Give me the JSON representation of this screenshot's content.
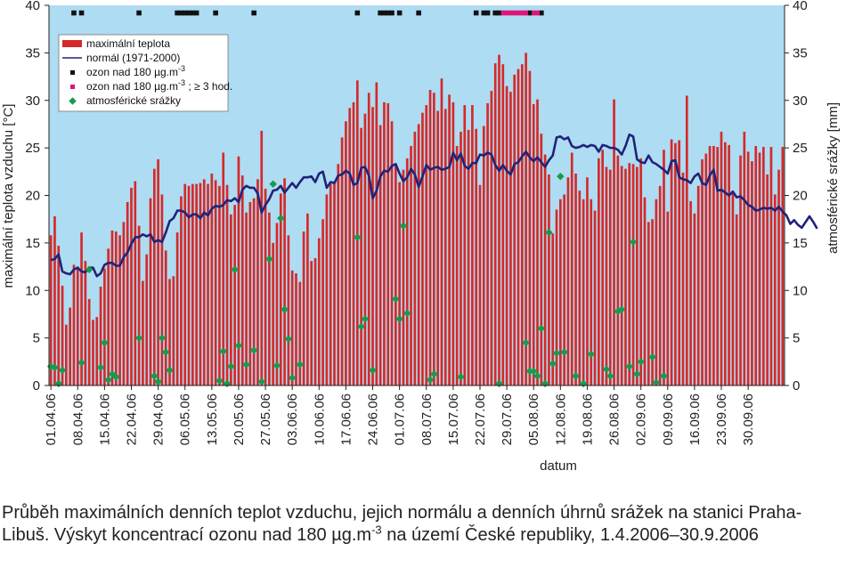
{
  "chart_data": {
    "type": "bar",
    "xlabel": "datum",
    "ylabel_left": "maximální teplota vzduchu [°C]",
    "ylabel_right": "atmosférické srážky [mm]",
    "ylim": [
      0,
      40
    ],
    "y2lim": [
      0,
      40
    ],
    "yticks": [
      0,
      5,
      10,
      15,
      20,
      25,
      30,
      35,
      40
    ],
    "grid": false,
    "legend_position": "top-left",
    "colors": {
      "plot_background": "#aedcf2",
      "bars": "#d42a2a",
      "normal_line": "#1f237a",
      "ozone": "#111111",
      "ozone_3h": "#e0157a",
      "precip": "#1a9a4a"
    },
    "x_tick_labels": [
      "01.04.06",
      "08.04.06",
      "15.04.06",
      "22.04.06",
      "29.04.06",
      "06.05.06",
      "13.05.06",
      "20.05.06",
      "27.05.06",
      "03.06.06",
      "10.06.06",
      "17.06.06",
      "24.06.06",
      "01.07.06",
      "08.07.06",
      "15.07.06",
      "22.07.06",
      "29.07.06",
      "05.08.06",
      "12.08.06",
      "19.08.06",
      "26.08.06",
      "02.09.06",
      "09.09.06",
      "16.09.06",
      "23.09.06",
      "30.09.06"
    ],
    "legend": [
      {
        "key": "max",
        "label": "maximální teplota",
        "symbol": "bar"
      },
      {
        "key": "normal",
        "label": "normál (1971-2000)",
        "symbol": "line"
      },
      {
        "key": "ozone",
        "label": "ozon nad 180 µg.m",
        "sup": "-3",
        "suffix": "",
        "symbol": "square-black"
      },
      {
        "key": "ozone3",
        "label": "ozon nad 180 µg.m",
        "sup": "-3",
        "suffix": " ; ≥ 3 hod.",
        "symbol": "square-pink"
      },
      {
        "key": "precip",
        "label": "atmosférické srážky",
        "symbol": "diamond"
      }
    ],
    "series": [
      {
        "name": "maximální teplota",
        "type": "bar",
        "axis": "left",
        "values": [
          15.8,
          17.8,
          14.7,
          10.5,
          6.4,
          8.2,
          12.7,
          12.5,
          16.1,
          13.1,
          9.1,
          6.9,
          7.2,
          10.4,
          12.3,
          14.4,
          16.3,
          16.2,
          15.8,
          17.2,
          19.3,
          20.8,
          21.5,
          16.8,
          11.0,
          13.8,
          19.7,
          22.8,
          23.8,
          20.1,
          14.2,
          11.2,
          11.5,
          16.1,
          19.9,
          21.2,
          21.0,
          21.2,
          21.2,
          21.3,
          21.7,
          21.2,
          22.3,
          21.6,
          21.0,
          24.5,
          21.1,
          18.0,
          19.0,
          24.1,
          22.1,
          18.2,
          19.3,
          19.7,
          21.7,
          26.8,
          20.7,
          18.2,
          15.0,
          17.1,
          20.2,
          21.8,
          15.8,
          12.1,
          11.8,
          10.9,
          16.2,
          18.1,
          13.1,
          13.4,
          15.5,
          17.5,
          20.1,
          21.2,
          21.5,
          23.3,
          26.1,
          27.8,
          29.2,
          29.8,
          32.1,
          27.1,
          28.6,
          30.8,
          29.3,
          31.9,
          27.4,
          29.8,
          29.7,
          27.8,
          23.1,
          21.4,
          22.7,
          23.9,
          25.2,
          26.7,
          27.5,
          28.7,
          29.5,
          31.1,
          30.8,
          28.9,
          32.3,
          29.1,
          30.6,
          29.8,
          25.2,
          26.7,
          29.5,
          26.9,
          29.5,
          27.0,
          21.1,
          27.3,
          29.7,
          31.0,
          33.9,
          34.8,
          33.8,
          31.5,
          30.9,
          32.7,
          33.3,
          33.8,
          35.0,
          33.1,
          29.6,
          30.1,
          26.5,
          24.3,
          22.2,
          16.0,
          18.5,
          19.6,
          20.1,
          21.9,
          24.5,
          22.3,
          20.5,
          19.6,
          21.9,
          19.6,
          18.4,
          23.9,
          24.8,
          23.0,
          22.7,
          30.1,
          24.2,
          23.1,
          22.8,
          23.4,
          23.3,
          23.0,
          23.9,
          19.8,
          17.2,
          17.5,
          19.6,
          21.0,
          24.8,
          18.3,
          25.9,
          25.5,
          25.8,
          22.4,
          30.5,
          19.4,
          18.1,
          21.0,
          23.8,
          24.4,
          25.2,
          25.2,
          25.1,
          26.7,
          25.6,
          25.3,
          20.3,
          18.0,
          24.2,
          26.7,
          24.6,
          23.6,
          25.2,
          24.5,
          25.1,
          22.2,
          25.1,
          20.1,
          22.7,
          25.1
        ]
      },
      {
        "name": "normál (1971-2000)",
        "type": "line",
        "axis": "left",
        "values": [
          13.2,
          13.3,
          13.8,
          12.0,
          11.8,
          11.7,
          12.2,
          12.4,
          12.0,
          11.9,
          12.4,
          12.4,
          11.5,
          11.8,
          12.7,
          12.9,
          12.9,
          12.6,
          12.6,
          13.5,
          14.0,
          14.9,
          15.6,
          15.6,
          15.9,
          15.7,
          15.9,
          15.1,
          15.3,
          15.1,
          16.1,
          17.3,
          17.6,
          18.4,
          18.4,
          18.2,
          17.7,
          18.0,
          18.0,
          17.6,
          18.2,
          17.9,
          18.6,
          18.9,
          18.8,
          19.0,
          19.5,
          19.4,
          19.7,
          19.3,
          20.6,
          21.0,
          20.8,
          20.8,
          20.2,
          18.2,
          19.0,
          19.6,
          20.5,
          20.6,
          21.0,
          20.3,
          20.8,
          21.3,
          20.8,
          21.4,
          21.9,
          21.9,
          22.0,
          21.4,
          22.3,
          22.5,
          20.8,
          21.4,
          21.3,
          22.1,
          22.2,
          22.6,
          22.3,
          21.1,
          21.3,
          22.9,
          23.0,
          22.1,
          19.7,
          20.5,
          22.0,
          22.6,
          22.5,
          23.1,
          23.3,
          22.3,
          21.5,
          21.9,
          22.8,
          22.2,
          20.9,
          22.0,
          23.2,
          22.7,
          22.9,
          23.0,
          22.7,
          22.8,
          23.0,
          24.5,
          23.7,
          24.4,
          23.1,
          22.8,
          23.4,
          23.4,
          24.3,
          24.2,
          24.5,
          24.3,
          23.2,
          22.6,
          23.2,
          22.6,
          22.2,
          23.3,
          23.5,
          24.1,
          24.6,
          24.0,
          23.6,
          24.0,
          23.5,
          23.0,
          23.7,
          24.2,
          26.1,
          26.2,
          25.9,
          26.1,
          25.2,
          25.0,
          25.1,
          25.3,
          25.1,
          25.3,
          25.2,
          24.6,
          25.3,
          25.2,
          25.0,
          25.0,
          24.8,
          24.3,
          25.2,
          26.4,
          26.2,
          23.8,
          23.5,
          23.4,
          24.2,
          23.5,
          23.3,
          23.0,
          22.7,
          22.3,
          23.6,
          23.7,
          21.9,
          21.7,
          21.6,
          21.3,
          22.0,
          22.3,
          21.3,
          21.1,
          22.1,
          22.7,
          20.5,
          20.6,
          20.3,
          20.0,
          20.4,
          19.8,
          19.9,
          19.5,
          19.0,
          18.8,
          18.4,
          18.5,
          18.7,
          18.6,
          18.7,
          18.4,
          18.8,
          18.3,
          17.9,
          17.0,
          17.4,
          16.9,
          16.6,
          17.2,
          17.8,
          17.2,
          16.5
        ]
      },
      {
        "name": "ozon nad 180 µg.m-3",
        "type": "marker",
        "axis": "left",
        "y": 39.2,
        "day_indexes": [
          6,
          8,
          23,
          33,
          34,
          35,
          36,
          37,
          38,
          43,
          53,
          80,
          86,
          87,
          88,
          89,
          91,
          96,
          111,
          113,
          114,
          116,
          117,
          125,
          128
        ]
      },
      {
        "name": "ozon nad 180 µg.m-3 ; ≥ 3 hod.",
        "type": "marker",
        "axis": "left",
        "y": 39.2,
        "day_indexes": [
          118,
          119,
          120,
          121,
          122,
          123,
          124,
          126,
          127
        ]
      },
      {
        "name": "atmosférické srážky",
        "type": "scatter",
        "axis": "right",
        "points": [
          [
            0,
            2.0
          ],
          [
            1,
            1.9
          ],
          [
            2,
            0.2
          ],
          [
            3,
            1.6
          ],
          [
            8,
            2.4
          ],
          [
            10,
            12.2
          ],
          [
            13,
            1.9
          ],
          [
            14,
            4.5
          ],
          [
            15,
            0.6
          ],
          [
            16,
            1.2
          ],
          [
            17,
            0.9
          ],
          [
            23,
            5.0
          ],
          [
            27,
            1.0
          ],
          [
            28,
            0.4
          ],
          [
            29,
            5.0
          ],
          [
            30,
            3.5
          ],
          [
            31,
            1.6
          ],
          [
            44,
            0.5
          ],
          [
            45,
            3.6
          ],
          [
            46,
            0.2
          ],
          [
            47,
            2.0
          ],
          [
            48,
            12.2
          ],
          [
            49,
            4.2
          ],
          [
            51,
            2.2
          ],
          [
            53,
            3.7
          ],
          [
            55,
            0.4
          ],
          [
            57,
            13.3
          ],
          [
            58,
            21.2
          ],
          [
            59,
            2.1
          ],
          [
            60,
            17.6
          ],
          [
            61,
            8.0
          ],
          [
            62,
            4.9
          ],
          [
            63,
            0.8
          ],
          [
            65,
            2.2
          ],
          [
            80,
            15.6
          ],
          [
            81,
            6.2
          ],
          [
            82,
            7.0
          ],
          [
            84,
            1.6
          ],
          [
            90,
            9.1
          ],
          [
            91,
            7.0
          ],
          [
            92,
            16.8
          ],
          [
            93,
            7.6
          ],
          [
            99,
            0.6
          ],
          [
            100,
            1.2
          ],
          [
            107,
            0.9
          ],
          [
            117,
            0.2
          ],
          [
            124,
            4.5
          ],
          [
            125,
            1.5
          ],
          [
            126,
            1.5
          ],
          [
            127,
            1.0
          ],
          [
            128,
            6.0
          ],
          [
            129,
            0.2
          ],
          [
            130,
            16.1
          ],
          [
            131,
            2.3
          ],
          [
            132,
            3.4
          ],
          [
            133,
            22.0
          ],
          [
            134,
            3.5
          ],
          [
            137,
            1.0
          ],
          [
            139,
            0.2
          ],
          [
            141,
            3.3
          ],
          [
            145,
            1.7
          ],
          [
            146,
            1.0
          ],
          [
            148,
            7.8
          ],
          [
            149,
            8.0
          ],
          [
            151,
            2.0
          ],
          [
            152,
            15.1
          ],
          [
            153,
            1.2
          ],
          [
            154,
            2.5
          ],
          [
            157,
            3.0
          ],
          [
            158,
            0.3
          ],
          [
            160,
            1.0
          ]
        ]
      }
    ]
  },
  "caption": {
    "part1": "Průběh maximálních denních teplot vzduchu, jejich normálu a denních úhrnů srážek na stanici Praha-Libuš. Výskyt koncentrací ozonu nad 180 µg.m",
    "sup": "-3",
    "part2": " na území České republiky, 1.4.2006–30.9.2006"
  }
}
